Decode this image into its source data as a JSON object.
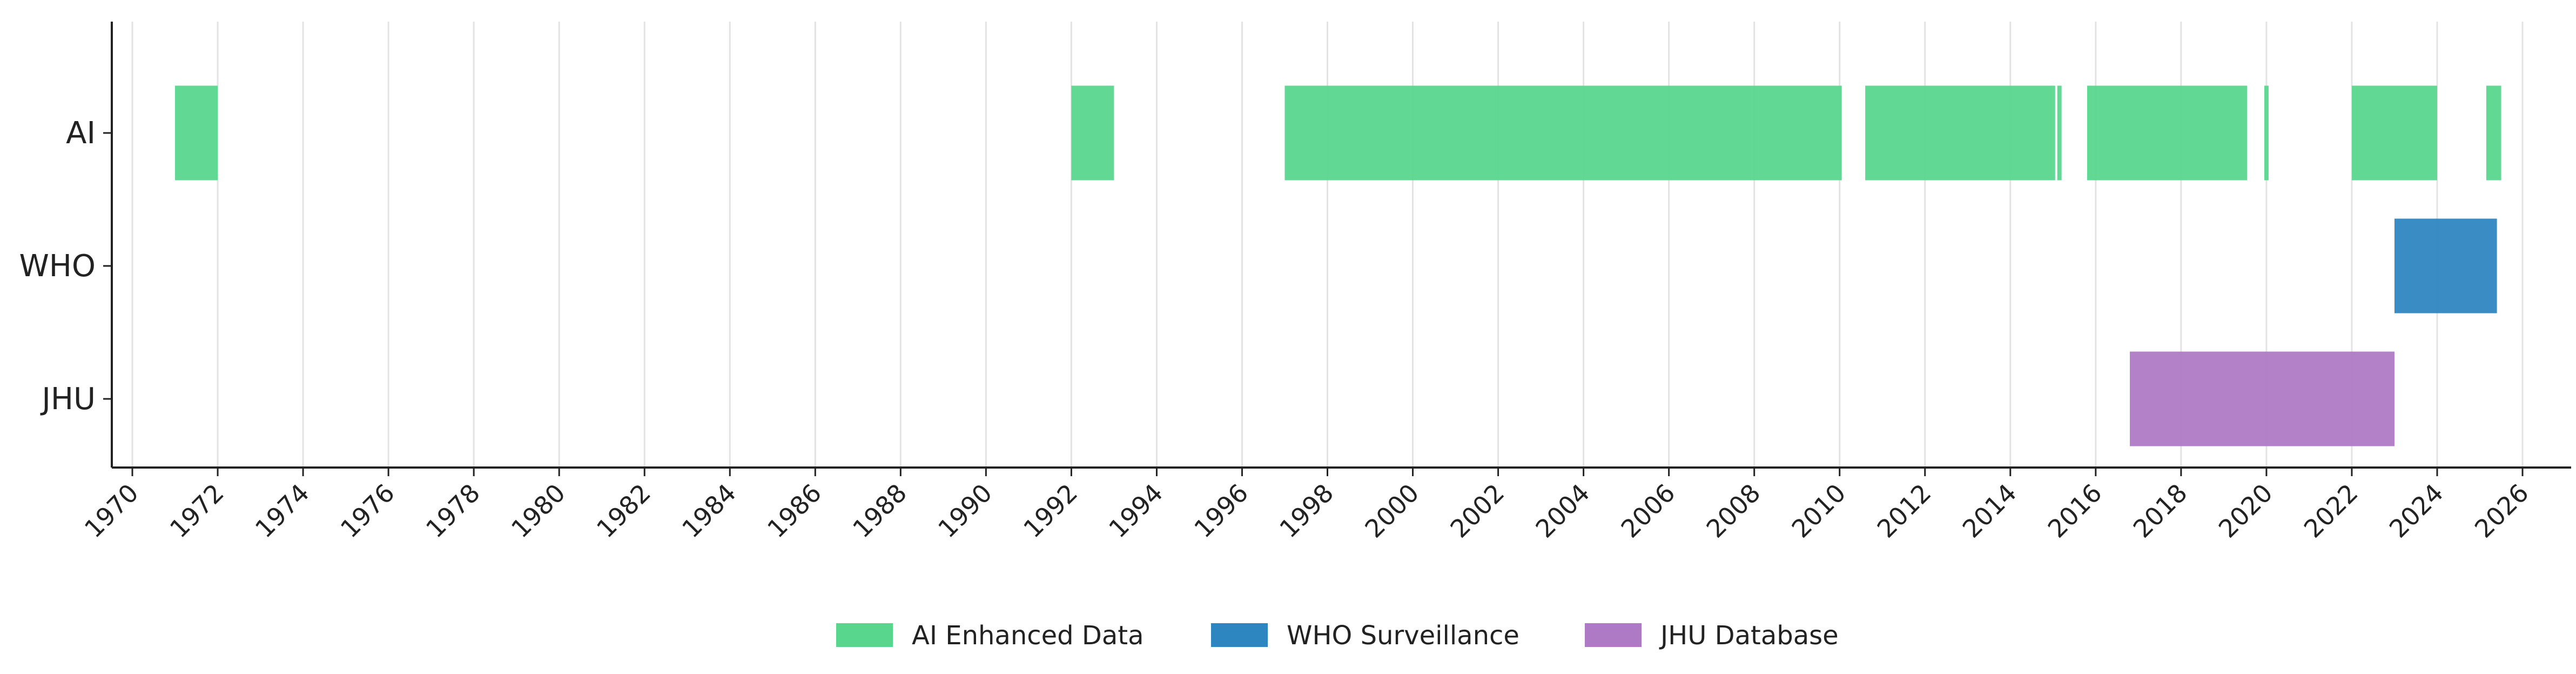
{
  "chart_data": {
    "type": "timeline",
    "title": "",
    "xlabel": "",
    "ylabel": "",
    "xlim": [
      1969.5,
      2026.5
    ],
    "x_ticks": [
      1970,
      1972,
      1974,
      1976,
      1978,
      1980,
      1982,
      1984,
      1986,
      1988,
      1990,
      1992,
      1994,
      1996,
      1998,
      2000,
      2002,
      2004,
      2006,
      2008,
      2010,
      2012,
      2014,
      2016,
      2018,
      2020,
      2022,
      2024,
      2026
    ],
    "categories": [
      "AI",
      "WHO",
      "JHU"
    ],
    "grid": "vertical",
    "legend_position": "bottom-center",
    "series": [
      {
        "name": "AI Enhanced Data",
        "row": "AI",
        "color": "#58d68d",
        "intervals": [
          [
            1971.0,
            1972.0
          ],
          [
            1992.0,
            1993.0
          ],
          [
            1997.0,
            2010.05
          ],
          [
            2010.6,
            2015.05
          ],
          [
            2015.1,
            2015.2
          ],
          [
            2015.8,
            2019.55
          ],
          [
            2019.95,
            2020.05
          ],
          [
            2022.0,
            2024.0
          ],
          [
            2025.15,
            2025.5
          ]
        ]
      },
      {
        "name": "WHO Surveillance",
        "row": "WHO",
        "color": "#2e86c1",
        "intervals": [
          [
            2023.0,
            2025.4
          ]
        ]
      },
      {
        "name": "JHU Database",
        "row": "JHU",
        "color": "#af7ac5",
        "intervals": [
          [
            2016.8,
            2023.0
          ]
        ]
      }
    ]
  }
}
